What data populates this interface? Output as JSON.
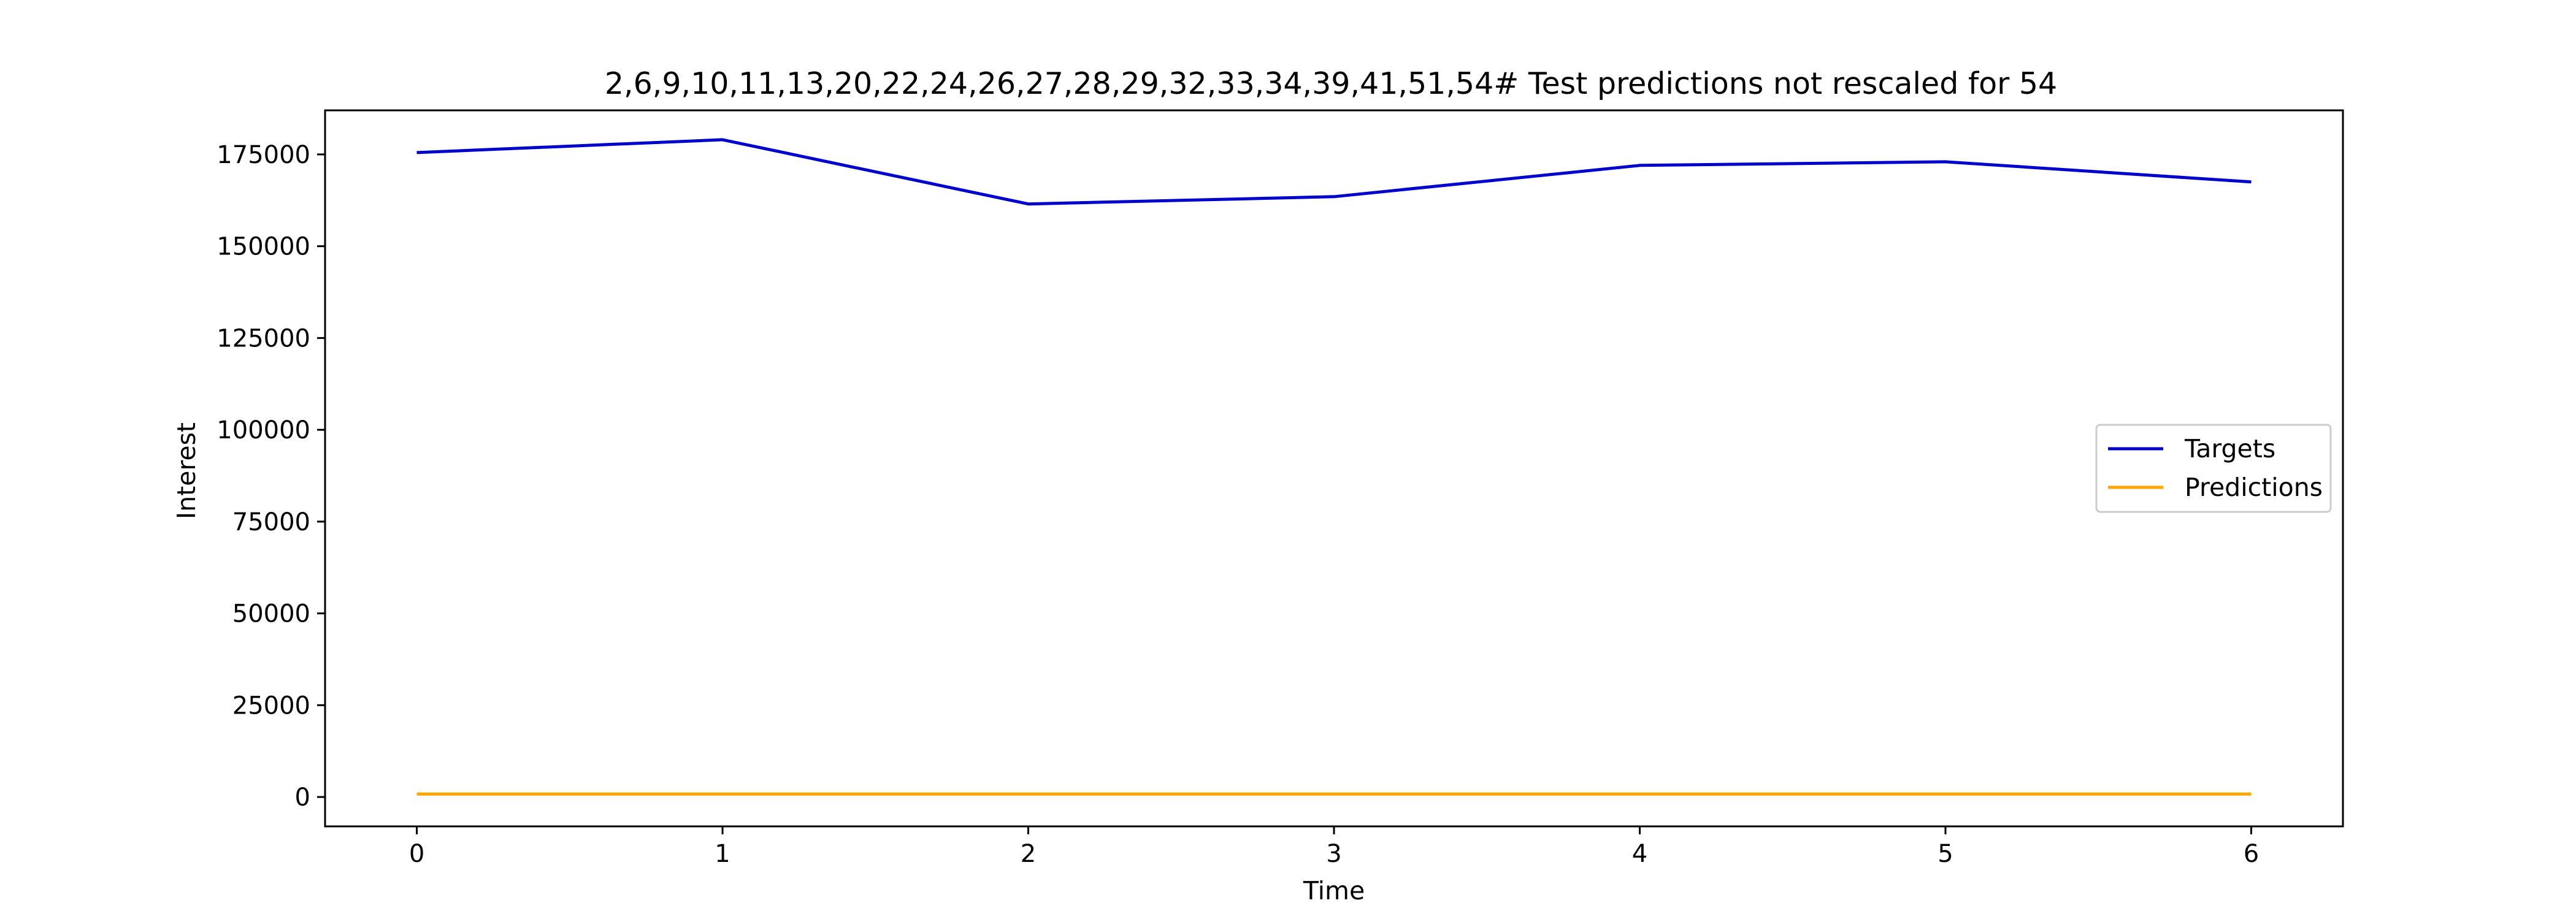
{
  "chart_data": {
    "type": "line",
    "title": "2,6,9,10,11,13,20,22,24,26,27,28,29,32,33,34,39,41,51,54# Test predictions not rescaled for 54",
    "xlabel": "Time",
    "ylabel": "Interest",
    "x": [
      0,
      1,
      2,
      3,
      4,
      5,
      6
    ],
    "xticks": [
      0,
      1,
      2,
      3,
      4,
      5,
      6
    ],
    "yticks": [
      0,
      25000,
      50000,
      75000,
      100000,
      125000,
      150000,
      175000
    ],
    "xlim": [
      -0.3,
      6.3
    ],
    "ylim": [
      -8000,
      187000
    ],
    "grid": false,
    "legend_position": "center-right",
    "series": [
      {
        "name": "Targets",
        "color": "#0000cc",
        "values": [
          175500,
          179000,
          161500,
          163500,
          172000,
          173000,
          167500
        ]
      },
      {
        "name": "Predictions",
        "color": "#ffa500",
        "values": [
          800,
          800,
          800,
          800,
          800,
          800,
          800
        ]
      }
    ]
  }
}
